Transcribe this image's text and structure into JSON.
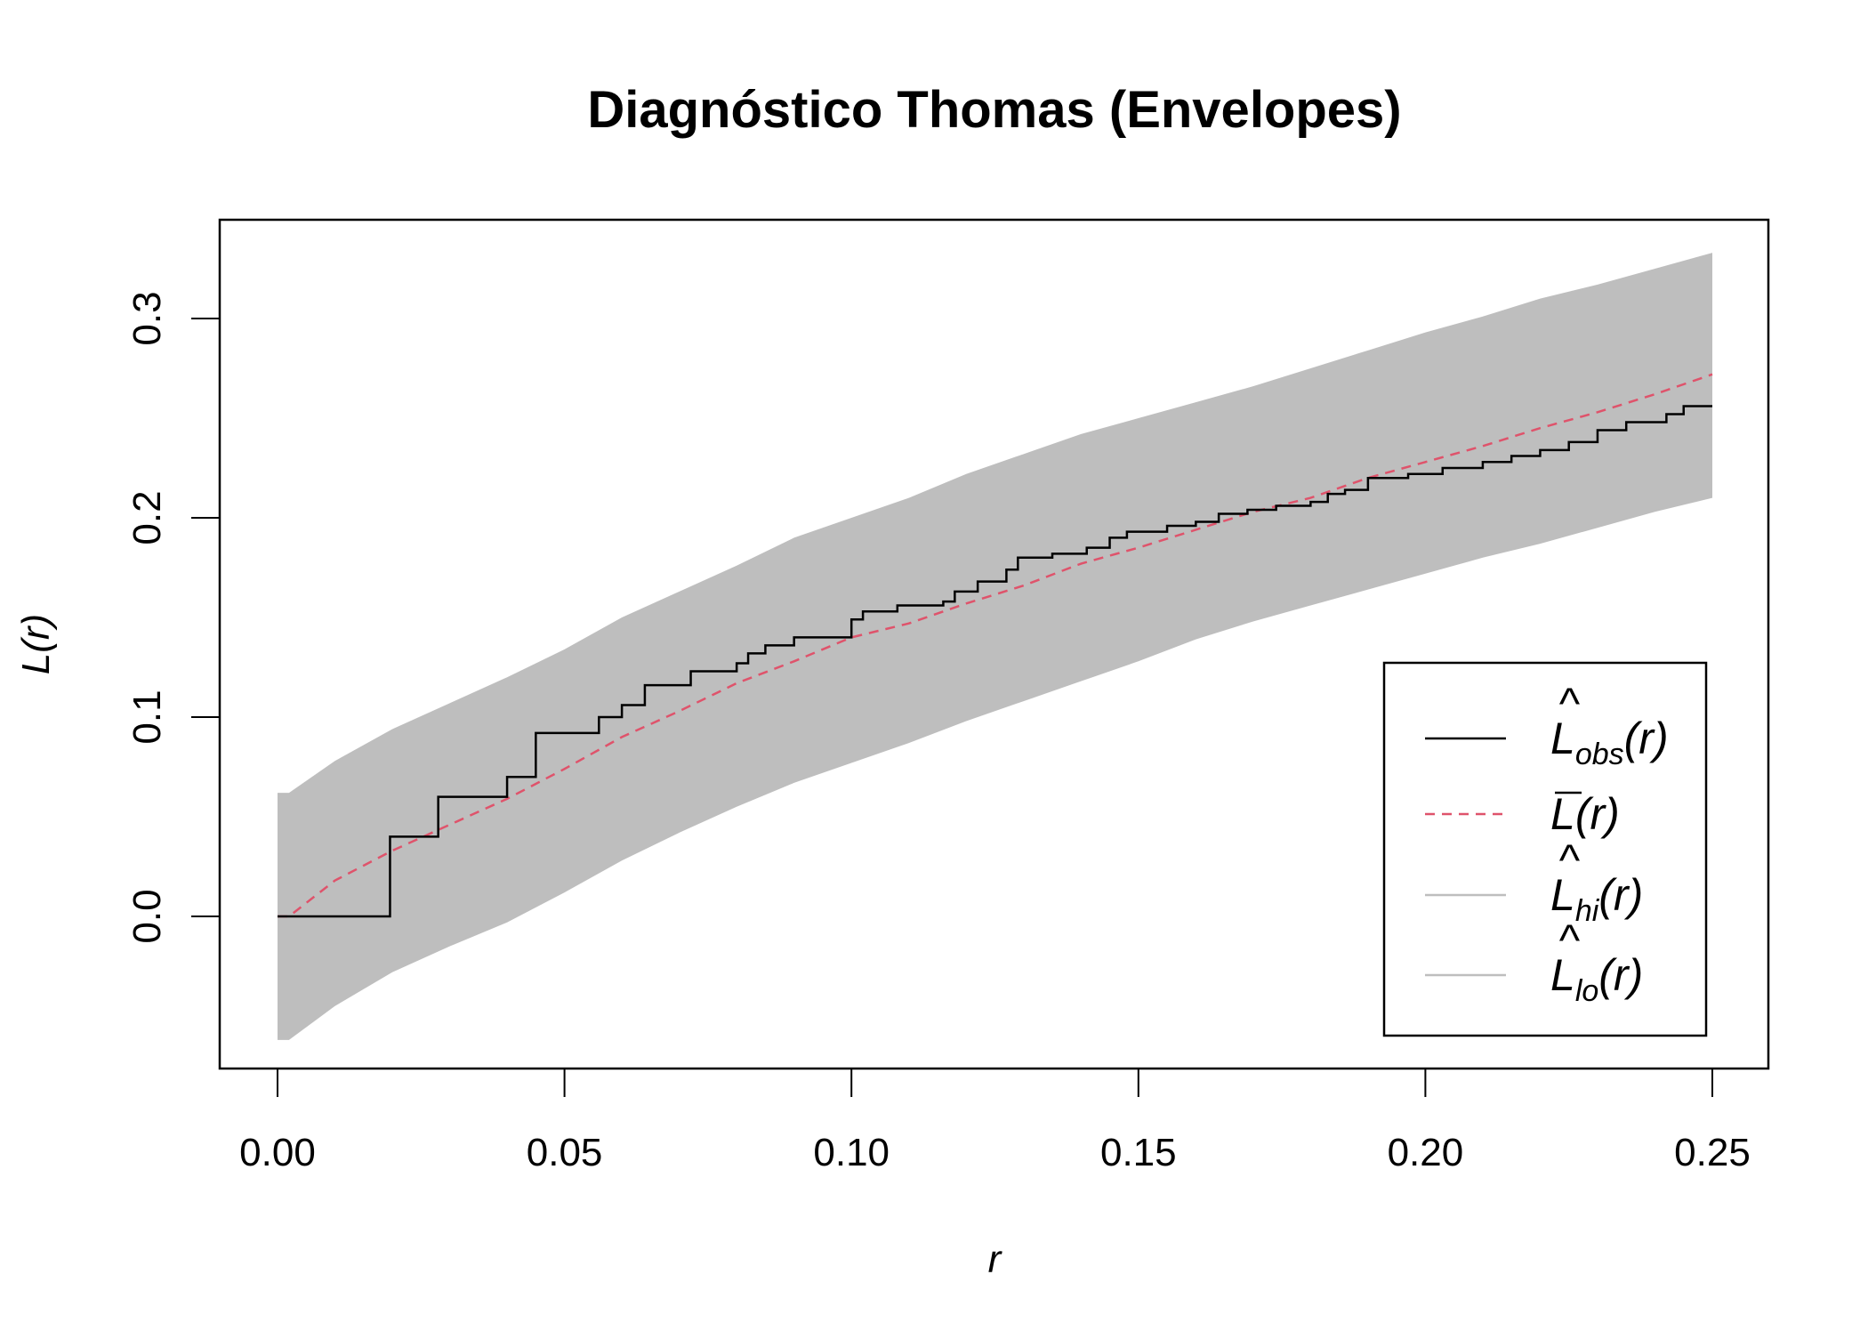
{
  "chart_data": {
    "type": "line",
    "title": "Diagnóstico Thomas (Envelopes)",
    "xlabel": "r",
    "ylabel": "L(r)",
    "xlim": [
      -0.01,
      0.26
    ],
    "ylim": [
      -0.077,
      0.35
    ],
    "xticks": [
      "0.00",
      "0.05",
      "0.10",
      "0.15",
      "0.20",
      "0.25"
    ],
    "yticks": [
      "0.0",
      "0.1",
      "0.2",
      "0.3"
    ],
    "legend": {
      "placement": "bottom-right",
      "entries": [
        {
          "base": "L",
          "sub": "obs",
          "arg": "(r)",
          "hat": true,
          "bar": false,
          "color": "#000000",
          "dash": "solid"
        },
        {
          "base": "L",
          "sub": "",
          "arg": "(r)",
          "hat": false,
          "bar": true,
          "color": "#DF536B",
          "dash": "dashed"
        },
        {
          "base": "L",
          "sub": "hi",
          "arg": "(r)",
          "hat": true,
          "bar": false,
          "color": "#BEBEBE",
          "dash": "solid"
        },
        {
          "base": "L",
          "sub": "lo",
          "arg": "(r)",
          "hat": true,
          "bar": false,
          "color": "#BEBEBE",
          "dash": "solid"
        }
      ]
    },
    "envelope": {
      "color": "#BEBEBE",
      "r": [
        0,
        0.002,
        0.01,
        0.02,
        0.03,
        0.04,
        0.05,
        0.06,
        0.07,
        0.08,
        0.09,
        0.1,
        0.11,
        0.12,
        0.13,
        0.14,
        0.15,
        0.16,
        0.17,
        0.18,
        0.19,
        0.2,
        0.21,
        0.22,
        0.23,
        0.24,
        0.25
      ],
      "hi": [
        0.062,
        0.062,
        0.078,
        0.094,
        0.107,
        0.12,
        0.134,
        0.15,
        0.163,
        0.176,
        0.19,
        0.2,
        0.21,
        0.222,
        0.232,
        0.242,
        0.25,
        0.258,
        0.266,
        0.275,
        0.284,
        0.293,
        0.301,
        0.31,
        0.317,
        0.325,
        0.333
      ],
      "lo": [
        -0.062,
        -0.062,
        -0.045,
        -0.028,
        -0.015,
        -0.003,
        0.012,
        0.028,
        0.042,
        0.055,
        0.067,
        0.077,
        0.087,
        0.098,
        0.108,
        0.118,
        0.128,
        0.139,
        0.148,
        0.156,
        0.164,
        0.172,
        0.18,
        0.187,
        0.195,
        0.203,
        0.21
      ]
    },
    "mean": {
      "color": "#DF536B",
      "r": [
        0,
        0.002,
        0.01,
        0.02,
        0.03,
        0.04,
        0.05,
        0.06,
        0.07,
        0.08,
        0.09,
        0.1,
        0.11,
        0.12,
        0.13,
        0.14,
        0.15,
        0.16,
        0.17,
        0.18,
        0.19,
        0.2,
        0.21,
        0.22,
        0.23,
        0.24,
        0.25
      ],
      "L": [
        0,
        0,
        0.018,
        0.033,
        0.046,
        0.059,
        0.074,
        0.09,
        0.103,
        0.117,
        0.128,
        0.14,
        0.147,
        0.157,
        0.166,
        0.177,
        0.185,
        0.194,
        0.203,
        0.21,
        0.22,
        0.228,
        0.236,
        0.245,
        0.253,
        0.262,
        0.272
      ]
    },
    "observed": {
      "color": "#000000",
      "steps": [
        [
          0,
          0
        ],
        [
          0.0196,
          0.04
        ],
        [
          0.028,
          0.06
        ],
        [
          0.04,
          0.07
        ],
        [
          0.045,
          0.092
        ],
        [
          0.056,
          0.1
        ],
        [
          0.06,
          0.106
        ],
        [
          0.064,
          0.116
        ],
        [
          0.072,
          0.123
        ],
        [
          0.08,
          0.127
        ],
        [
          0.082,
          0.132
        ],
        [
          0.085,
          0.136
        ],
        [
          0.09,
          0.14
        ],
        [
          0.1,
          0.149
        ],
        [
          0.102,
          0.153
        ],
        [
          0.108,
          0.156
        ],
        [
          0.116,
          0.158
        ],
        [
          0.118,
          0.163
        ],
        [
          0.122,
          0.168
        ],
        [
          0.127,
          0.174
        ],
        [
          0.129,
          0.18
        ],
        [
          0.135,
          0.182
        ],
        [
          0.141,
          0.185
        ],
        [
          0.145,
          0.19
        ],
        [
          0.148,
          0.193
        ],
        [
          0.155,
          0.196
        ],
        [
          0.16,
          0.198
        ],
        [
          0.164,
          0.202
        ],
        [
          0.169,
          0.204
        ],
        [
          0.174,
          0.206
        ],
        [
          0.18,
          0.208
        ],
        [
          0.183,
          0.212
        ],
        [
          0.186,
          0.214
        ],
        [
          0.19,
          0.22
        ],
        [
          0.197,
          0.222
        ],
        [
          0.203,
          0.225
        ],
        [
          0.21,
          0.228
        ],
        [
          0.215,
          0.231
        ],
        [
          0.22,
          0.234
        ],
        [
          0.225,
          0.238
        ],
        [
          0.23,
          0.244
        ],
        [
          0.235,
          0.248
        ],
        [
          0.242,
          0.252
        ],
        [
          0.245,
          0.256
        ],
        [
          0.25,
          0.256
        ]
      ]
    }
  }
}
